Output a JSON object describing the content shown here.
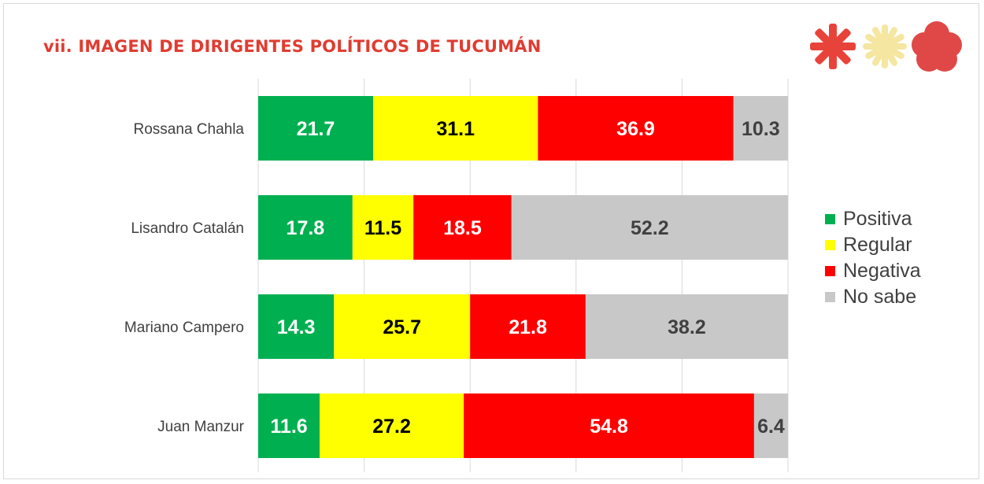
{
  "title": "vii. IMAGEN DE DIRIGENTES POLÍTICOS DE TUCUMÁN",
  "logo": {
    "icon": "brand-logo-icon",
    "colors": [
      "#e8433a",
      "#f5e6a1",
      "#e04848"
    ]
  },
  "chart_data": {
    "type": "bar",
    "orientation": "horizontal",
    "stacked": true,
    "percent_stacked": true,
    "categories": [
      "Rossana Chahla",
      "Lisandro Catalán",
      "Mariano Campero",
      "Juan Manzur"
    ],
    "series": [
      {
        "name": "Positiva",
        "color": "#00b050",
        "label_color": "#ffffff",
        "values": [
          21.7,
          17.8,
          14.3,
          11.6
        ]
      },
      {
        "name": "Regular",
        "color": "#ffff00",
        "label_color": "#000000",
        "values": [
          31.1,
          11.5,
          25.7,
          27.2
        ]
      },
      {
        "name": "Negativa",
        "color": "#ff0000",
        "label_color": "#ffffff",
        "values": [
          36.9,
          18.5,
          21.8,
          54.8
        ]
      },
      {
        "name": "No sabe",
        "color": "#c8c8c8",
        "label_color": "#404040",
        "values": [
          10.3,
          52.2,
          38.2,
          6.4
        ]
      }
    ],
    "xlim": [
      0,
      100
    ],
    "grid": true,
    "data_labels": true,
    "legend_position": "right"
  }
}
